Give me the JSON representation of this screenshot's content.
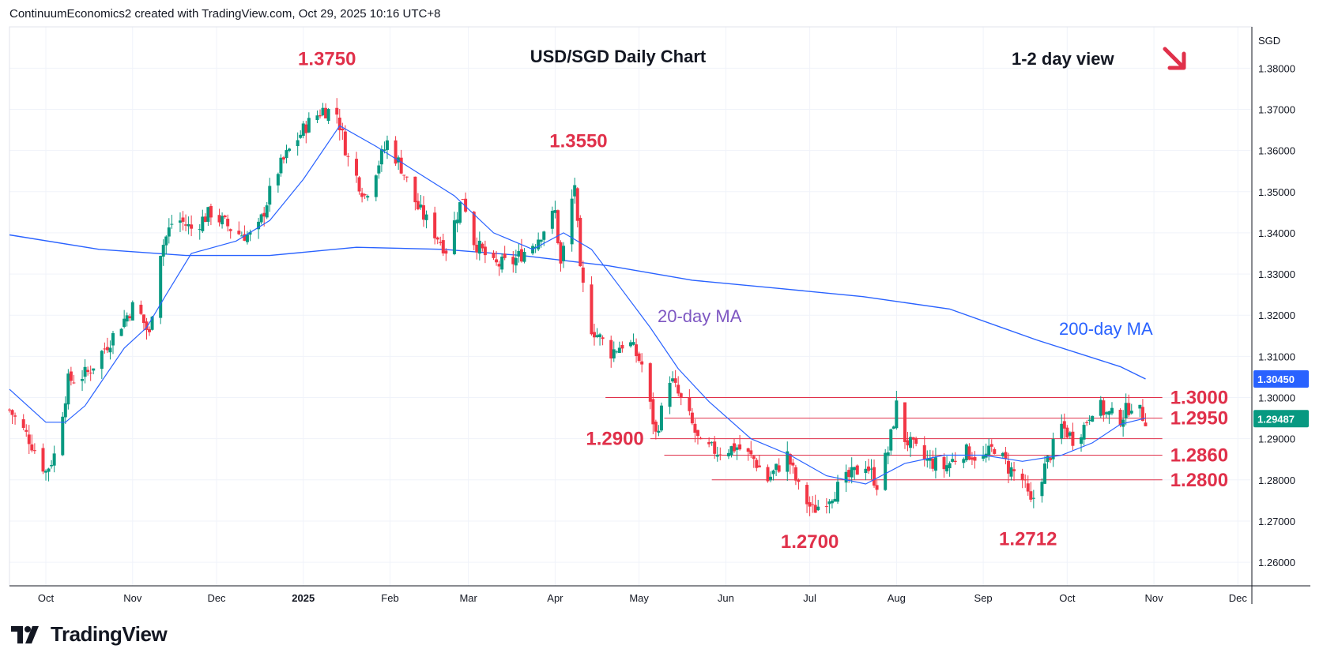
{
  "header": {
    "attribution": "ContinuumEconomics2 created with TradingView.com, Oct 29, 2025 10:16 UTC+8"
  },
  "footer": {
    "brand": "TradingView"
  },
  "colors": {
    "up": "#089981",
    "down": "#f23645",
    "ma20": "#7e57c2",
    "ma200": "#2962ff",
    "annotation": "#e0304a",
    "level_line": "#e0304a",
    "price_badge": "#089981",
    "ma200_badge": "#2962ff"
  },
  "chart_data": {
    "type": "candlestick",
    "title": "USD/SGD Daily Chart",
    "subtitle": "1-2 day view",
    "direction_icon": "down-right-arrow-icon",
    "currency_label": "SGD",
    "x_ticks": [
      "Oct",
      "Nov",
      "Dec",
      "2025",
      "Feb",
      "Mar",
      "Apr",
      "May",
      "Jun",
      "Jul",
      "Aug",
      "Sep",
      "Oct",
      "Nov",
      "Dec"
    ],
    "y_ticks": [
      "1.38000",
      "1.37000",
      "1.36000",
      "1.35000",
      "1.34000",
      "1.33000",
      "1.32000",
      "1.31000",
      "1.30000",
      "1.29000",
      "1.28000",
      "1.27000",
      "1.26000"
    ],
    "ylim": [
      1.2535,
      1.3885
    ],
    "x_range": [
      "2024-09-18",
      "2025-12-06"
    ],
    "current_price": "1.29487",
    "ma200_value": "1.30450",
    "levels": [
      {
        "value": 1.3,
        "label": "1.3000",
        "from": "2025-04-19"
      },
      {
        "value": 1.295,
        "label": "1.2950",
        "from": "2025-05-10"
      },
      {
        "value": 1.29,
        "label": "1.2900",
        "from": "2025-05-05"
      },
      {
        "value": 1.286,
        "label": "1.2860",
        "from": "2025-05-10"
      },
      {
        "value": 1.28,
        "label": "1.2800",
        "from": "2025-05-27"
      }
    ],
    "peak_labels": [
      {
        "label": "1.3750",
        "date": "2025-01-01",
        "value": 1.375
      },
      {
        "label": "1.3550",
        "date": "2025-04-02",
        "value": 1.355
      },
      {
        "label": "1.2700",
        "date": "2025-07-01",
        "value": 1.27
      },
      {
        "label": "1.2712",
        "date": "2025-09-17",
        "value": 1.2712
      }
    ],
    "ma_labels": [
      {
        "name": "20-day MA"
      },
      {
        "name": "200-day MA"
      }
    ],
    "path_anchors": [
      [
        "2024-09-18",
        1.297
      ],
      [
        "2024-09-25",
        1.29
      ],
      [
        "2024-10-01",
        1.282
      ],
      [
        "2024-10-04",
        1.286
      ],
      [
        "2024-10-09",
        1.304
      ],
      [
        "2024-10-16",
        1.306
      ],
      [
        "2024-10-25",
        1.315
      ],
      [
        "2024-11-02",
        1.323
      ],
      [
        "2024-11-07",
        1.315
      ],
      [
        "2024-11-10",
        1.334
      ],
      [
        "2024-11-16",
        1.344
      ],
      [
        "2024-11-22",
        1.341
      ],
      [
        "2024-11-29",
        1.345
      ],
      [
        "2024-12-08",
        1.34
      ],
      [
        "2024-12-15",
        1.339
      ],
      [
        "2024-12-22",
        1.354
      ],
      [
        "2024-12-27",
        1.36
      ],
      [
        "2025-01-02",
        1.366
      ],
      [
        "2025-01-08",
        1.37
      ],
      [
        "2025-01-13",
        1.369
      ],
      [
        "2025-01-17",
        1.358
      ],
      [
        "2025-01-23",
        1.349
      ],
      [
        "2025-01-31",
        1.362
      ],
      [
        "2025-02-05",
        1.356
      ],
      [
        "2025-02-11",
        1.346
      ],
      [
        "2025-02-16",
        1.341
      ],
      [
        "2025-02-21",
        1.336
      ],
      [
        "2025-02-27",
        1.349
      ],
      [
        "2025-03-03",
        1.338
      ],
      [
        "2025-03-10",
        1.332
      ],
      [
        "2025-03-17",
        1.333
      ],
      [
        "2025-03-25",
        1.338
      ],
      [
        "2025-04-01",
        1.345
      ],
      [
        "2025-04-03",
        1.332
      ],
      [
        "2025-04-08",
        1.352
      ],
      [
        "2025-04-10",
        1.33
      ],
      [
        "2025-04-14",
        1.317
      ],
      [
        "2025-04-21",
        1.311
      ],
      [
        "2025-04-27",
        1.314
      ],
      [
        "2025-05-02",
        1.308
      ],
      [
        "2025-05-07",
        1.291
      ],
      [
        "2025-05-12",
        1.305
      ],
      [
        "2025-05-19",
        1.295
      ],
      [
        "2025-05-23",
        1.288
      ],
      [
        "2025-05-29",
        1.287
      ],
      [
        "2025-06-05",
        1.288
      ],
      [
        "2025-06-11",
        1.285
      ],
      [
        "2025-06-16",
        1.28
      ],
      [
        "2025-06-23",
        1.286
      ],
      [
        "2025-06-27",
        1.278
      ],
      [
        "2025-07-02",
        1.2725
      ],
      [
        "2025-07-08",
        1.276
      ],
      [
        "2025-07-14",
        1.28
      ],
      [
        "2025-07-21",
        1.284
      ],
      [
        "2025-07-25",
        1.279
      ],
      [
        "2025-07-29",
        1.287
      ],
      [
        "2025-08-01",
        1.298
      ],
      [
        "2025-08-04",
        1.29
      ],
      [
        "2025-08-11",
        1.285
      ],
      [
        "2025-08-18",
        1.283
      ],
      [
        "2025-08-25",
        1.287
      ],
      [
        "2025-09-01",
        1.285
      ],
      [
        "2025-09-05",
        1.288
      ],
      [
        "2025-09-10",
        1.283
      ],
      [
        "2025-09-15",
        1.28
      ],
      [
        "2025-09-18",
        1.274
      ],
      [
        "2025-09-23",
        1.283
      ],
      [
        "2025-09-29",
        1.293
      ],
      [
        "2025-10-03",
        1.29
      ],
      [
        "2025-10-07",
        1.293
      ],
      [
        "2025-10-11",
        1.299
      ],
      [
        "2025-10-15",
        1.296
      ],
      [
        "2025-10-20",
        1.295
      ],
      [
        "2025-10-24",
        1.2985
      ],
      [
        "2025-10-29",
        1.2949
      ]
    ],
    "ma20": [
      [
        "2024-09-18",
        1.302
      ],
      [
        "2024-10-01",
        1.294
      ],
      [
        "2024-10-08",
        1.294
      ],
      [
        "2024-10-15",
        1.298
      ],
      [
        "2024-10-29",
        1.312
      ],
      [
        "2024-11-06",
        1.317
      ],
      [
        "2024-11-13",
        1.325
      ],
      [
        "2024-11-22",
        1.335
      ],
      [
        "2024-12-08",
        1.338
      ],
      [
        "2024-12-20",
        1.343
      ],
      [
        "2025-01-01",
        1.353
      ],
      [
        "2025-01-14",
        1.366
      ],
      [
        "2025-01-27",
        1.361
      ],
      [
        "2025-02-10",
        1.355
      ],
      [
        "2025-02-24",
        1.349
      ],
      [
        "2025-03-10",
        1.34
      ],
      [
        "2025-03-24",
        1.336
      ],
      [
        "2025-04-04",
        1.34
      ],
      [
        "2025-04-14",
        1.336
      ],
      [
        "2025-04-24",
        1.327
      ],
      [
        "2025-05-05",
        1.317
      ],
      [
        "2025-05-15",
        1.307
      ],
      [
        "2025-05-26",
        1.299
      ],
      [
        "2025-06-10",
        1.29
      ],
      [
        "2025-06-24",
        1.286
      ],
      [
        "2025-07-07",
        1.281
      ],
      [
        "2025-07-21",
        1.279
      ],
      [
        "2025-08-04",
        1.284
      ],
      [
        "2025-08-18",
        1.286
      ],
      [
        "2025-09-01",
        1.286
      ],
      [
        "2025-09-15",
        1.2845
      ],
      [
        "2025-09-29",
        1.286
      ],
      [
        "2025-10-10",
        1.289
      ],
      [
        "2025-10-20",
        1.2935
      ],
      [
        "2025-10-29",
        1.295
      ]
    ],
    "ma200": [
      [
        "2024-09-18",
        1.3395
      ],
      [
        "2024-10-20",
        1.336
      ],
      [
        "2024-11-20",
        1.3345
      ],
      [
        "2024-12-20",
        1.3345
      ],
      [
        "2025-01-20",
        1.3365
      ],
      [
        "2025-02-20",
        1.336
      ],
      [
        "2025-03-20",
        1.3345
      ],
      [
        "2025-04-20",
        1.332
      ],
      [
        "2025-05-20",
        1.3285
      ],
      [
        "2025-06-20",
        1.3265
      ],
      [
        "2025-07-20",
        1.3245
      ],
      [
        "2025-08-20",
        1.3215
      ],
      [
        "2025-09-20",
        1.314
      ],
      [
        "2025-10-20",
        1.3075
      ],
      [
        "2025-10-29",
        1.3045
      ]
    ]
  }
}
